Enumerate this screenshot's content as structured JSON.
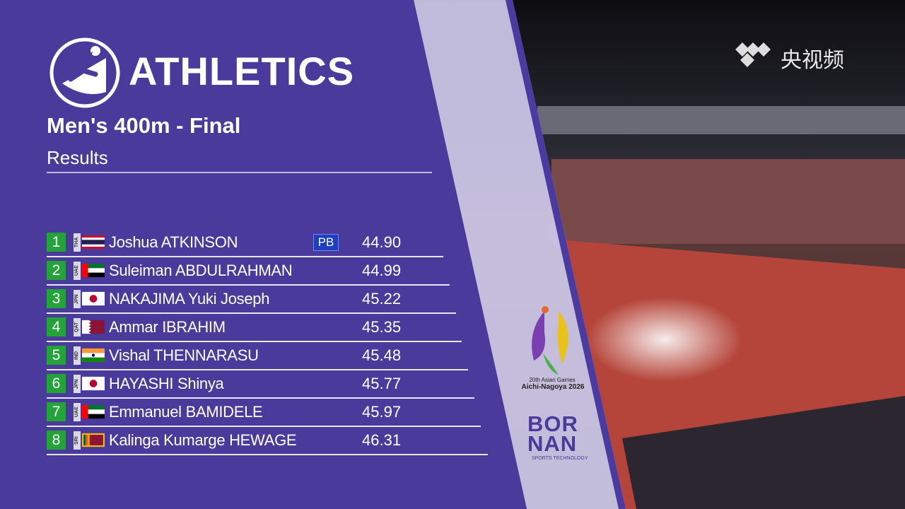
{
  "header": {
    "sport": "ATHLETICS",
    "event": "Men's 400m - Final",
    "subtitle": "Results"
  },
  "results": [
    {
      "rank": 1,
      "code": "THA",
      "name": "Joshua ATKINSON",
      "badge": "PB",
      "time": "44.90"
    },
    {
      "rank": 2,
      "code": "UAE",
      "name": "Suleiman ABDULRAHMAN",
      "time": "44.99"
    },
    {
      "rank": 3,
      "code": "JPN",
      "name": "NAKAJIMA Yuki Joseph",
      "time": "45.22"
    },
    {
      "rank": 4,
      "code": "QAT",
      "name": "Ammar IBRAHIM",
      "time": "45.35"
    },
    {
      "rank": 5,
      "code": "IND",
      "name": "Vishal THENNARASU",
      "time": "45.48"
    },
    {
      "rank": 6,
      "code": "JPN",
      "name": "HAYASHI Shinya",
      "time": "45.77"
    },
    {
      "rank": 7,
      "code": "UAE",
      "name": "Emmanuel BAMIDELE",
      "time": "45.97"
    },
    {
      "rank": 8,
      "code": "SRI",
      "name": "Kalinga Kumarge HEWAGE",
      "time": "46.31"
    }
  ],
  "watermark": "央视频",
  "games_logo": {
    "line1": "20th Asian Games",
    "line2": "Aichi-Nagoya 2026"
  },
  "sponsor": {
    "line1": "BOR",
    "line2": "NAN",
    "tagline": "SPORTS TECHNOLOGY"
  }
}
